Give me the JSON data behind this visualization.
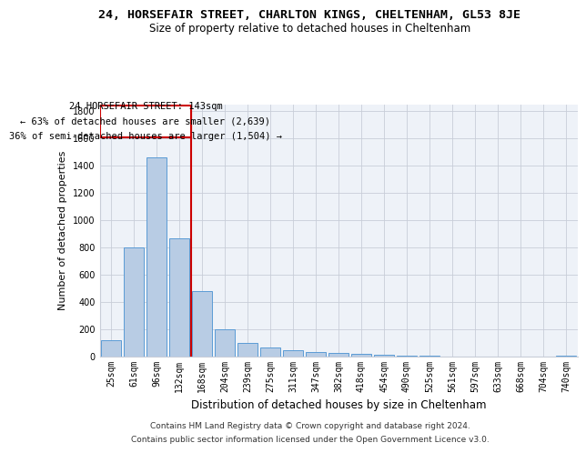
{
  "title_line1": "24, HORSEFAIR STREET, CHARLTON KINGS, CHELTENHAM, GL53 8JE",
  "title_line2": "Size of property relative to detached houses in Cheltenham",
  "xlabel": "Distribution of detached houses by size in Cheltenham",
  "ylabel": "Number of detached properties",
  "bar_color": "#b8cce4",
  "bar_edge_color": "#5b9bd5",
  "categories": [
    "25sqm",
    "61sqm",
    "96sqm",
    "132sqm",
    "168sqm",
    "204sqm",
    "239sqm",
    "275sqm",
    "311sqm",
    "347sqm",
    "382sqm",
    "418sqm",
    "454sqm",
    "490sqm",
    "525sqm",
    "561sqm",
    "597sqm",
    "633sqm",
    "668sqm",
    "704sqm",
    "740sqm"
  ],
  "values": [
    120,
    800,
    1460,
    870,
    480,
    200,
    100,
    65,
    45,
    35,
    25,
    20,
    15,
    8,
    5,
    3,
    2,
    1,
    1,
    1,
    10
  ],
  "ylim": [
    0,
    1850
  ],
  "yticks": [
    0,
    200,
    400,
    600,
    800,
    1000,
    1200,
    1400,
    1600,
    1800
  ],
  "vline_color": "#cc0000",
  "annotation_line1": "24 HORSEFAIR STREET: 143sqm",
  "annotation_line2": "← 63% of detached houses are smaller (2,639)",
  "annotation_line3": "36% of semi-detached houses are larger (1,504) →",
  "footer_line1": "Contains HM Land Registry data © Crown copyright and database right 2024.",
  "footer_line2": "Contains public sector information licensed under the Open Government Licence v3.0.",
  "background_color": "#eef2f8",
  "grid_color": "#c8cdd8",
  "title1_fontsize": 9.5,
  "title2_fontsize": 8.5,
  "tick_fontsize": 7,
  "ylabel_fontsize": 8,
  "xlabel_fontsize": 8.5,
  "footer_fontsize": 6.5
}
